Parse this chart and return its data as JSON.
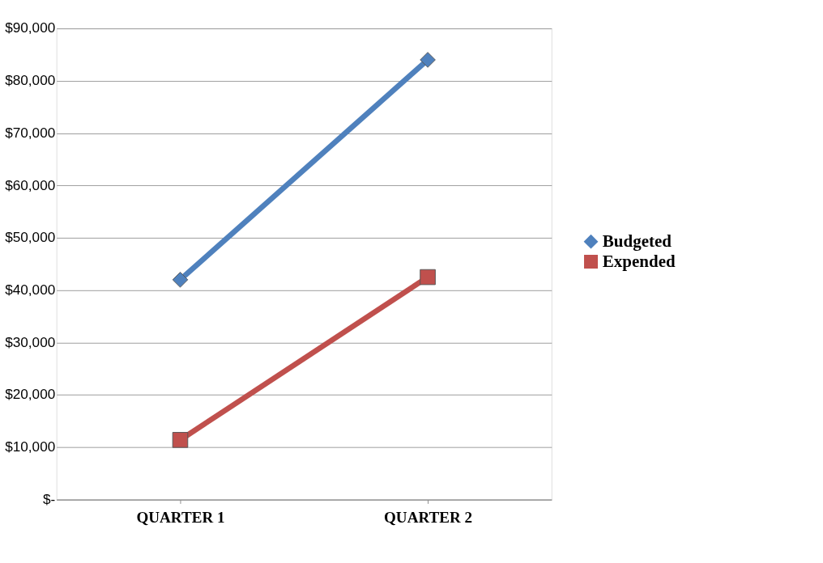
{
  "chart_data": {
    "type": "line",
    "categories": [
      "QUARTER 1",
      "QUARTER 2"
    ],
    "series": [
      {
        "name": "Budgeted",
        "color": "#4f81bd",
        "marker": "diamond",
        "values": [
          42000,
          84000
        ]
      },
      {
        "name": "Expended",
        "color": "#c0504d",
        "marker": "square",
        "values": [
          11400,
          42500
        ]
      }
    ],
    "ylim": [
      0,
      90000
    ],
    "yticks": [
      {
        "value": 0,
        "label": "$-"
      },
      {
        "value": 10000,
        "label": "$10,000"
      },
      {
        "value": 20000,
        "label": "$20,000"
      },
      {
        "value": 30000,
        "label": "$30,000"
      },
      {
        "value": 40000,
        "label": "$40,000"
      },
      {
        "value": 50000,
        "label": "$50,000"
      },
      {
        "value": 60000,
        "label": "$60,000"
      },
      {
        "value": 70000,
        "label": "$70,000"
      },
      {
        "value": 80000,
        "label": "$80,000"
      },
      {
        "value": 90000,
        "label": "$90,000"
      }
    ],
    "grid": "y",
    "legend": "right",
    "line_style": "solid"
  }
}
